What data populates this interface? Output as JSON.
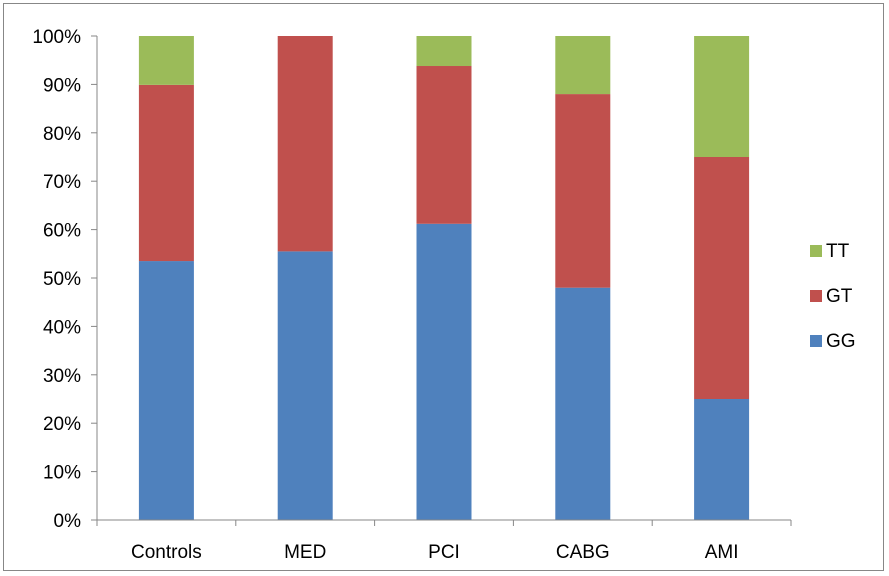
{
  "chart_data": {
    "type": "bar",
    "stacked": "percent",
    "title": "",
    "xlabel": "",
    "ylabel": "",
    "ylim": [
      0,
      100
    ],
    "yticks": [
      "0%",
      "10%",
      "20%",
      "30%",
      "40%",
      "50%",
      "60%",
      "70%",
      "80%",
      "90%",
      "100%"
    ],
    "categories": [
      "Controls",
      "MED",
      "PCI",
      "CABG",
      "AMI"
    ],
    "series": [
      {
        "name": "GG",
        "color": "#4F81BD",
        "values": [
          53.5,
          55.5,
          61.2,
          48.0,
          25.0
        ]
      },
      {
        "name": "GT",
        "color": "#C0504D",
        "values": [
          36.4,
          44.5,
          32.6,
          40.0,
          50.0
        ]
      },
      {
        "name": "TT",
        "color": "#9BBB59",
        "values": [
          10.1,
          0.0,
          6.2,
          12.0,
          25.0
        ]
      }
    ],
    "legend": {
      "position": "right",
      "order": [
        "TT",
        "GT",
        "GG"
      ]
    },
    "grid": false
  }
}
